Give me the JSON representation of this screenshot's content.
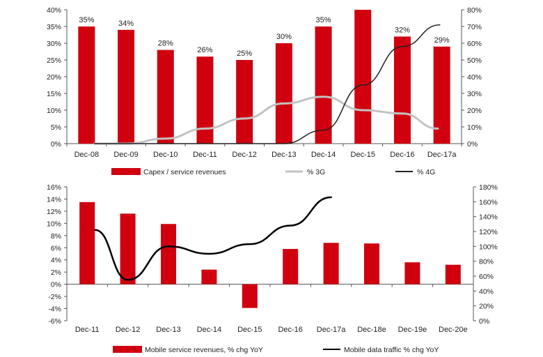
{
  "chart_data": [
    {
      "type": "bar",
      "categories": [
        "Dec-08",
        "Dec-09",
        "Dec-10",
        "Dec-11",
        "Dec-12",
        "Dec-13",
        "Dec-14",
        "Dec-15",
        "Dec-16",
        "Dec-17a"
      ],
      "series": [
        {
          "name": "Capex / service revenues",
          "type": "bar",
          "axis": "left",
          "values": [
            35,
            34,
            28,
            26,
            25,
            30,
            35,
            40,
            32,
            29
          ],
          "labels": [
            "35%",
            "34%",
            "28%",
            "26%",
            "25%",
            "30%",
            "35%",
            null,
            "32%",
            "29%"
          ],
          "color": "#d0000f"
        },
        {
          "name": "% 3G",
          "type": "line",
          "axis": "right",
          "color": "#c2c2c2",
          "points": [
            [
              0.2,
              0
            ],
            [
              1.0,
              0
            ],
            [
              2.0,
              3
            ],
            [
              3.0,
              9
            ],
            [
              4.0,
              15
            ],
            [
              5.0,
              24
            ],
            [
              6.0,
              28
            ],
            [
              7.0,
              20
            ],
            [
              8.0,
              18
            ],
            [
              8.9,
              9
            ]
          ]
        },
        {
          "name": "% 4G",
          "type": "line",
          "axis": "right",
          "color": "#222222",
          "points": [
            [
              0.2,
              0
            ],
            [
              1.0,
              0
            ],
            [
              2.0,
              0
            ],
            [
              3.0,
              0
            ],
            [
              4.0,
              0
            ],
            [
              5.0,
              0
            ],
            [
              6.0,
              8
            ],
            [
              7.0,
              35
            ],
            [
              8.0,
              58
            ],
            [
              8.95,
              71
            ]
          ]
        }
      ],
      "y_left": {
        "min": 0,
        "max": 40,
        "step": 5,
        "ticks": [
          "0%",
          "5%",
          "10%",
          "15%",
          "20%",
          "25%",
          "30%",
          "35%",
          "40%"
        ]
      },
      "y_right": {
        "min": 0,
        "max": 80,
        "step": 10,
        "ticks": [
          "0%",
          "10%",
          "20%",
          "30%",
          "40%",
          "50%",
          "60%",
          "70%",
          "80%"
        ]
      },
      "legend": [
        "Capex / service revenues",
        "% 3G",
        "% 4G"
      ],
      "legend_position": "bottom",
      "grid": false
    },
    {
      "type": "bar",
      "categories": [
        "Dec-11",
        "Dec-12",
        "Dec-13",
        "Dec-14",
        "Dec-15",
        "Dec-16",
        "Dec-17a",
        "Dec-18e",
        "Dec-19e",
        "Dec-20e"
      ],
      "series": [
        {
          "name": "Mobile service revenues, % chg YoY",
          "type": "bar",
          "axis": "left",
          "color": "#d0000f",
          "values": [
            13.5,
            11.6,
            9.9,
            2.4,
            -3.9,
            5.8,
            6.8,
            6.7,
            3.6,
            3.2
          ]
        },
        {
          "name": "Mobile data traffic % chg YoY",
          "type": "line",
          "axis": "right",
          "color": "#000000",
          "points": [
            [
              0.2,
              122
            ],
            [
              1.0,
              55
            ],
            [
              2.0,
              100
            ],
            [
              3.0,
              90
            ],
            [
              4.0,
              103
            ],
            [
              5.0,
              128
            ],
            [
              6.0,
              166
            ]
          ]
        }
      ],
      "y_left": {
        "min": -6,
        "max": 16,
        "step": 2,
        "ticks": [
          "-6%",
          "-4%",
          "-2%",
          "0%",
          "2%",
          "4%",
          "6%",
          "8%",
          "10%",
          "12%",
          "14%",
          "16%"
        ]
      },
      "y_right": {
        "min": 0,
        "max": 180,
        "step": 20,
        "ticks": [
          "0%",
          "20%",
          "40%",
          "60%",
          "80%",
          "100%",
          "120%",
          "140%",
          "160%",
          "180%"
        ]
      },
      "legend": [
        "Mobile service revenues, % chg YoY",
        "Mobile data traffic % chg YoY"
      ],
      "legend_position": "bottom",
      "grid": false
    }
  ]
}
